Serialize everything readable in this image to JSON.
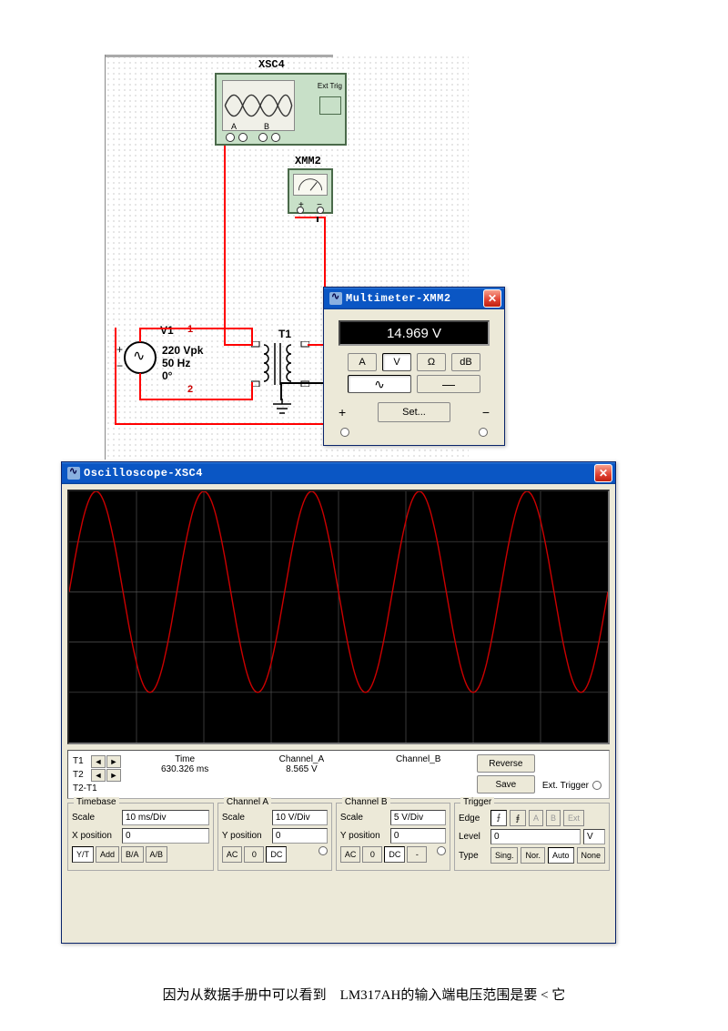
{
  "circuit": {
    "scope_label": "XSC4",
    "mm_label": "XMM2",
    "source_label": "V1",
    "transformer_label": "T1",
    "node1": "1",
    "node2": "2",
    "scope_exttrig": "Ext Trig",
    "scope_a": "A",
    "scope_b": "B",
    "source_params": {
      "vpk": "220 Vpk",
      "freq": "50 Hz",
      "phase": "0°"
    }
  },
  "multimeter_win": {
    "title": "Multimeter-XMM2",
    "display": "14.969 V",
    "modes": {
      "a": "A",
      "v": "V",
      "ohm": "Ω",
      "db": "dB"
    },
    "wave": {
      "ac": "∿",
      "dc": "—"
    },
    "set": "Set...",
    "plus": "+",
    "minus": "−"
  },
  "osc_win": {
    "title": "Oscilloscope-XSC4",
    "cursors": {
      "t1": "T1",
      "t2": "T2",
      "diff": "T2-T1",
      "time_h": "Time",
      "cha_h": "Channel_A",
      "chb_h": "Channel_B",
      "time_v": "630.326 ms",
      "cha_v": "8.565 V"
    },
    "side": {
      "reverse": "Reverse",
      "save": "Save",
      "exttrig": "Ext. Trigger"
    },
    "timebase": {
      "title": "Timebase",
      "scale_l": "Scale",
      "scale_v": "10 ms/Div",
      "xpos_l": "X position",
      "xpos_v": "0",
      "btns": {
        "yt": "Y/T",
        "add": "Add",
        "ba": "B/A",
        "ab": "A/B"
      }
    },
    "cha": {
      "title": "Channel A",
      "scale_l": "Scale",
      "scale_v": "10  V/Div",
      "ypos_l": "Y position",
      "ypos_v": "0",
      "btns": {
        "ac": "AC",
        "zero": "0",
        "dc": "DC"
      }
    },
    "chb": {
      "title": "Channel B",
      "scale_l": "Scale",
      "scale_v": "5  V/Div",
      "ypos_l": "Y position",
      "ypos_v": "0",
      "btns": {
        "ac": "AC",
        "zero": "0",
        "dc": "DC",
        "minus": "-"
      }
    },
    "trigger": {
      "title": "Trigger",
      "edge_l": "Edge",
      "level_l": "Level",
      "level_v": "0",
      "level_u": "V",
      "type_l": "Type",
      "btns": {
        "rise": "↗",
        "fall": "↘",
        "a": "A",
        "b": "B",
        "ext": "Ext",
        "sing": "Sing.",
        "nor": "Nor.",
        "auto": "Auto",
        "none": "None"
      }
    },
    "waveform": {
      "color": "#cc0000",
      "grid_color": "#505050",
      "background": "#000000",
      "amplitude_div": 2.0,
      "offset_div": 0,
      "cycles": 5,
      "grid_h_divs": 5,
      "grid_v_divs": 8
    }
  },
  "caption": "因为从数据手册中可以看到　LM317AH的输入端电压范围是要 < 它"
}
